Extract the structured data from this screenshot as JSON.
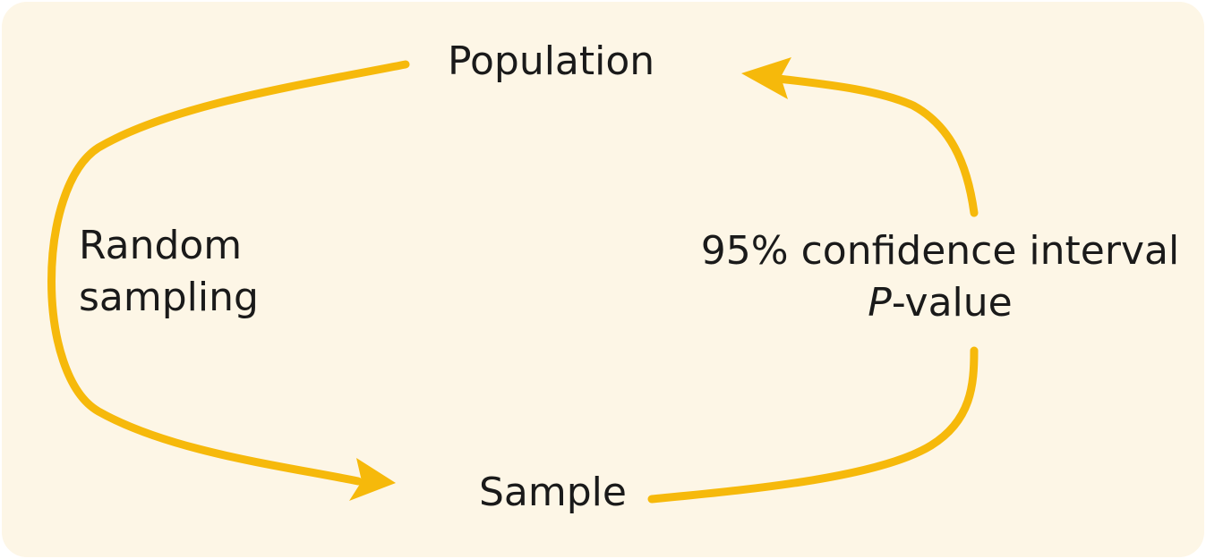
{
  "nodes": {
    "population": "Population",
    "sample": "Sample"
  },
  "edges": {
    "left": {
      "line1": "Random",
      "line2": "sampling"
    },
    "right": {
      "line1": "95% confidence interval",
      "line2_italic": "P",
      "line2_rest": "-value"
    }
  },
  "colors": {
    "background": "#fdf6e6",
    "arrow": "#f6b90b",
    "text": "#1a1a1a"
  }
}
